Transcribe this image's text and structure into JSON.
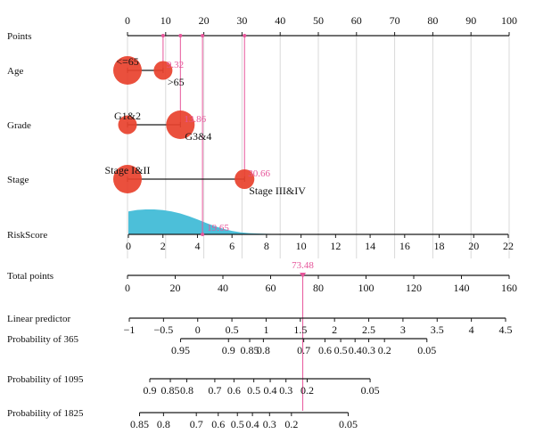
{
  "colors": {
    "bubble": "#e8412c",
    "pink": "#e6559a",
    "density": "#4cbfd9",
    "grid": "#d9d9d9",
    "axis": "#1a1a1a"
  },
  "chart_data": {
    "type": "nomogram",
    "rows": [
      {
        "label": "Points",
        "axis": {
          "min": 0,
          "max": 100,
          "ticks": [
            0,
            10,
            20,
            30,
            40,
            50,
            60,
            70,
            80,
            90,
            100
          ],
          "labels_above": true
        },
        "markers": [
          9.32,
          13.86,
          19.65,
          30.66
        ]
      },
      {
        "label": "Age",
        "categories": [
          {
            "name": "<=65",
            "points": 0,
            "relative_size": 1.0,
            "name_pos": "above"
          },
          {
            "name": ">65",
            "points": 9.32,
            "relative_size": 0.5,
            "name_pos": "below"
          }
        ],
        "selected_points": 9.32,
        "selected_label": "9.32"
      },
      {
        "label": "Grade",
        "categories": [
          {
            "name": "G1&2",
            "points": 0,
            "relative_size": 0.5,
            "name_pos": "above"
          },
          {
            "name": "G3&4",
            "points": 13.86,
            "relative_size": 1.0,
            "name_pos": "below"
          }
        ],
        "selected_points": 13.86,
        "selected_label": "13.86"
      },
      {
        "label": "Stage",
        "categories": [
          {
            "name": "Stage I&II",
            "points": 0,
            "relative_size": 1.0,
            "name_pos": "above"
          },
          {
            "name": "Stage III&IV",
            "points": 30.66,
            "relative_size": 0.55,
            "name_pos": "below"
          }
        ],
        "selected_points": 30.66,
        "selected_label": "30.66"
      },
      {
        "label": "RiskScore",
        "axis": {
          "min": 0,
          "max": 22,
          "points_min": 0,
          "points_max": 100,
          "ticks": [
            0,
            2,
            4,
            6,
            8,
            10,
            12,
            14,
            16,
            18,
            20,
            22
          ]
        },
        "density": {
          "x": [
            0,
            0.5,
            1,
            1.5,
            2,
            2.5,
            3,
            3.5,
            4,
            4.5,
            5,
            5.5,
            6,
            6.5,
            7,
            8,
            9,
            10,
            12,
            22
          ],
          "y": [
            0.92,
            0.98,
            1.0,
            1.0,
            0.97,
            0.92,
            0.84,
            0.73,
            0.6,
            0.46,
            0.33,
            0.22,
            0.14,
            0.08,
            0.05,
            0.02,
            0.01,
            0.005,
            0.002,
            0
          ]
        },
        "selected_points": 19.65,
        "selected_label": "19.65"
      },
      {
        "label": "Total points",
        "axis": {
          "min": 0,
          "max": 160,
          "ticks": [
            0,
            20,
            40,
            60,
            80,
            100,
            120,
            140,
            160
          ]
        },
        "selected_value": 73.48,
        "selected_label": "73.48"
      },
      {
        "label": "Linear predictor",
        "axis": {
          "min": -1,
          "max": 4.5,
          "ticks": [
            -1,
            -0.5,
            0,
            0.5,
            1,
            1.5,
            2,
            2.5,
            3,
            3.5,
            4,
            4.5
          ],
          "tick_labels": [
            "−1",
            "−0.5",
            "0",
            "0.5",
            "1",
            "1.5",
            "2",
            "2.5",
            "3",
            "3.5",
            "4",
            "4.5"
          ]
        }
      },
      {
        "label": "Probability of 365",
        "ticks": [
          {
            "value": 0.95,
            "label": "0.95",
            "lp": -0.25
          },
          {
            "value": 0.9,
            "label": "0.9",
            "lp": 0.45
          },
          {
            "value": 0.85,
            "label": "0.85",
            "lp": 0.76
          },
          {
            "value": 0.8,
            "label": "0.8",
            "lp": 0.96
          },
          {
            "value": 0.7,
            "label": "0.7",
            "lp": 1.55
          },
          {
            "value": 0.6,
            "label": "0.6",
            "lp": 1.86
          },
          {
            "value": 0.5,
            "label": "0.5",
            "lp": 2.09
          },
          {
            "value": 0.4,
            "label": "0.4",
            "lp": 2.3
          },
          {
            "value": 0.3,
            "label": "0.3",
            "lp": 2.5
          },
          {
            "value": 0.2,
            "label": "0.2",
            "lp": 2.73
          },
          {
            "value": 0.05,
            "label": "0.05",
            "lp": 3.35
          }
        ]
      },
      {
        "label": "Probability of 1095",
        "ticks": [
          {
            "value": 0.9,
            "label": "0.9",
            "lp": -0.7
          },
          {
            "value": 0.85,
            "label": "0.85",
            "lp": -0.4
          },
          {
            "value": 0.8,
            "label": "0.8",
            "lp": -0.16
          },
          {
            "value": 0.7,
            "label": "0.7",
            "lp": 0.25
          },
          {
            "value": 0.6,
            "label": "0.6",
            "lp": 0.53
          },
          {
            "value": 0.5,
            "label": "0.5",
            "lp": 0.82
          },
          {
            "value": 0.4,
            "label": "0.4",
            "lp": 1.06
          },
          {
            "value": 0.3,
            "label": "0.3",
            "lp": 1.29
          },
          {
            "value": 0.2,
            "label": "0.2",
            "lp": 1.6
          },
          {
            "value": 0.05,
            "label": "0.05",
            "lp": 2.52
          }
        ]
      },
      {
        "label": "Probability of 1825",
        "ticks": [
          {
            "value": 0.85,
            "label": "0.85",
            "lp": -0.85
          },
          {
            "value": 0.8,
            "label": "0.8",
            "lp": -0.5
          },
          {
            "value": 0.7,
            "label": "0.7",
            "lp": -0.02
          },
          {
            "value": 0.6,
            "label": "0.6",
            "lp": 0.3
          },
          {
            "value": 0.5,
            "label": "0.5",
            "lp": 0.58
          },
          {
            "value": 0.4,
            "label": "0.4",
            "lp": 0.8
          },
          {
            "value": 0.3,
            "label": "0.3",
            "lp": 1.05
          },
          {
            "value": 0.2,
            "label": "0.2",
            "lp": 1.37
          },
          {
            "value": 0.05,
            "label": "0.05",
            "lp": 2.2
          }
        ]
      }
    ]
  }
}
